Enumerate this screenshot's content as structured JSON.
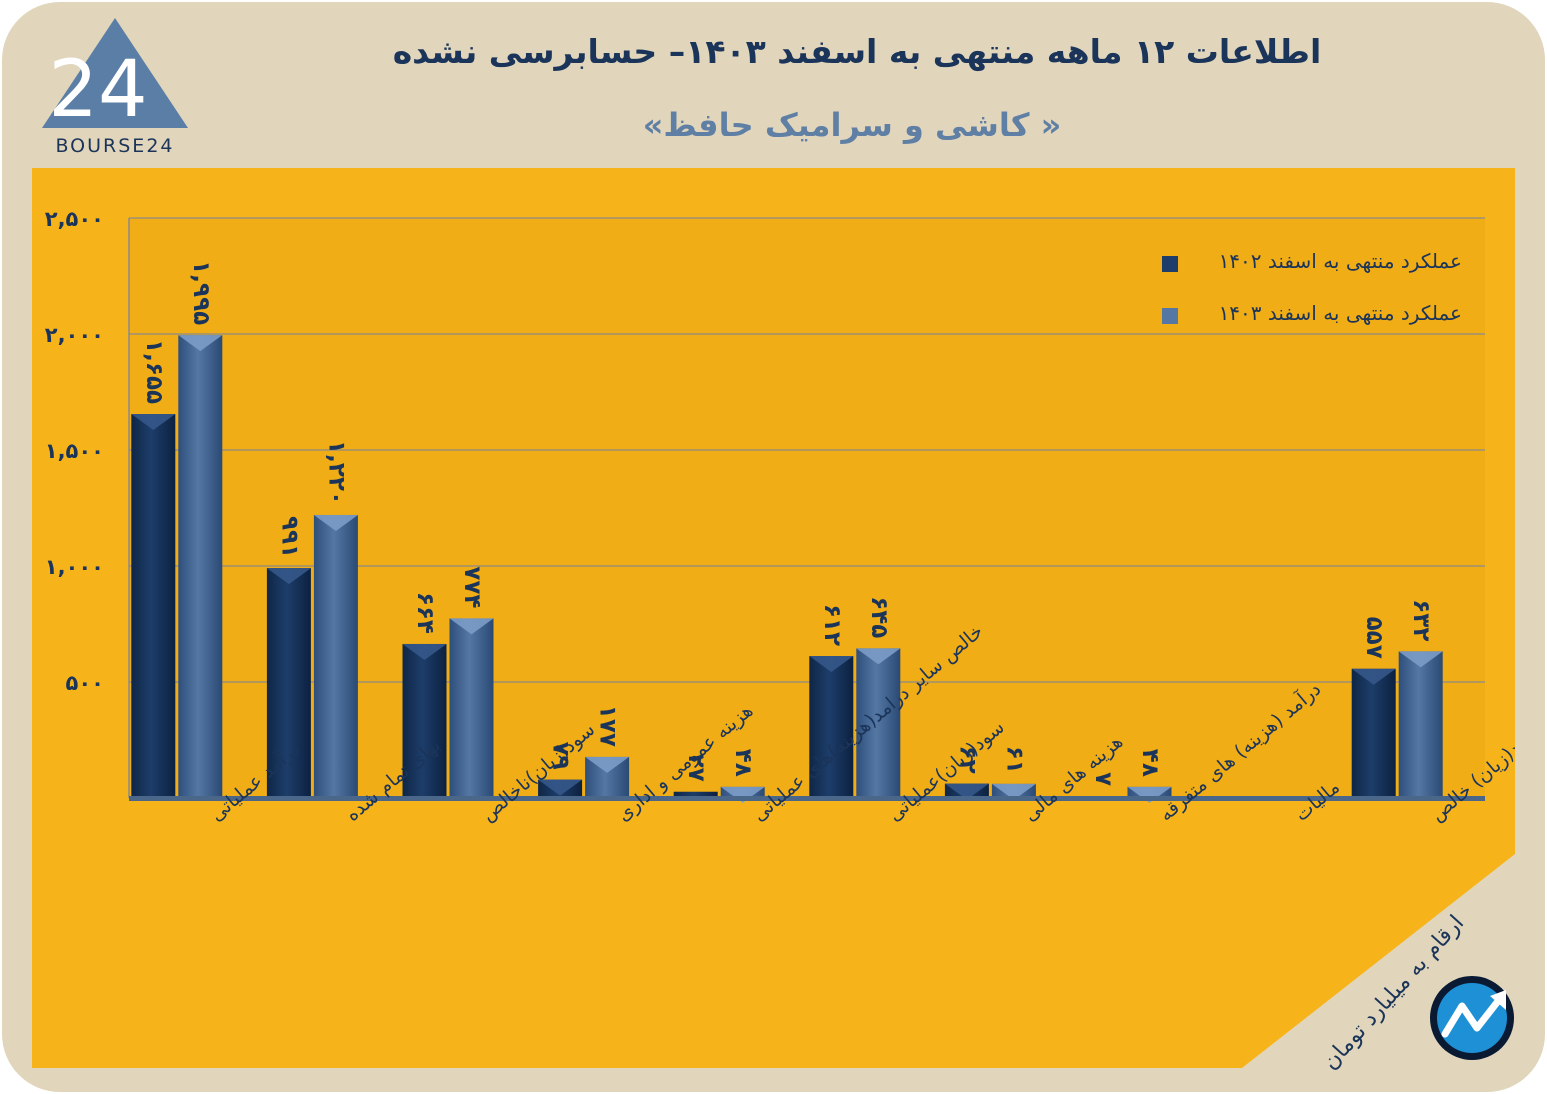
{
  "header": {
    "title": "اطلاعات ۱۲ ماهه منتهی به اسفند  ۱۴۰۳– حسابرسی نشده",
    "subtitle": "« کاشی و سرامیک حافظ»"
  },
  "logo": {
    "text": "BOURSE24",
    "mark": "24"
  },
  "note": {
    "units": "ارقام به میلیارد تومان"
  },
  "colors": {
    "background": "#e1d6bc",
    "panel": "#f6b41a",
    "corner": "#e1d6bc",
    "series_1402": "#1d3d6a",
    "series_1403": "#5477a4",
    "text": "#1b3459"
  },
  "chart_data": {
    "type": "bar",
    "title": "",
    "xlabel": "",
    "ylabel": "",
    "ylim": [
      0,
      2500
    ],
    "yticks": [
      500,
      1000,
      1500,
      2000,
      2500
    ],
    "ytick_labels": [
      "۵۰۰",
      "۱,۰۰۰",
      "۱,۵۰۰",
      "۲,۰۰۰",
      "۲,۵۰۰"
    ],
    "grid": true,
    "legend_position": "top-right",
    "categories": [
      "درآمد عملیاتی",
      "بهای تمام شده",
      "سود(زیان)ناخالص",
      "هزینه عمومی و اداری",
      "خالص سایر درامد(هزینه)های عملیاتی",
      "سود(زیان)عملیاتی",
      "هزینه های مالی",
      "درآمد (هزینه) های متفرقه",
      "مالیات",
      "سود(زیان) خالص"
    ],
    "series": [
      {
        "name": "عملکرد منتهی به اسفند ۱۴۰۲",
        "values": [
          1655,
          991,
          664,
          79,
          27,
          612,
          62,
          7,
          null,
          557
        ],
        "labels": [
          "۱,۶۵۵",
          "۹۹۱",
          "۶۶۴",
          "۷۹",
          "۲۷",
          "۶۱۲",
          "۶۲",
          "۷",
          "",
          "۵۵۷"
        ]
      },
      {
        "name": "عملکرد منتهی به اسفند ۱۴۰۳",
        "values": [
          1995,
          1220,
          774,
          177,
          48,
          645,
          61,
          48,
          null,
          632
        ],
        "labels": [
          "۱,۹۹۵",
          "۱,۲۲۰",
          "۷۷۴",
          "۱۷۷",
          "۴۸",
          "۶۴۵",
          "۶۱",
          "۴۸",
          "",
          "۶۳۲"
        ]
      }
    ]
  }
}
